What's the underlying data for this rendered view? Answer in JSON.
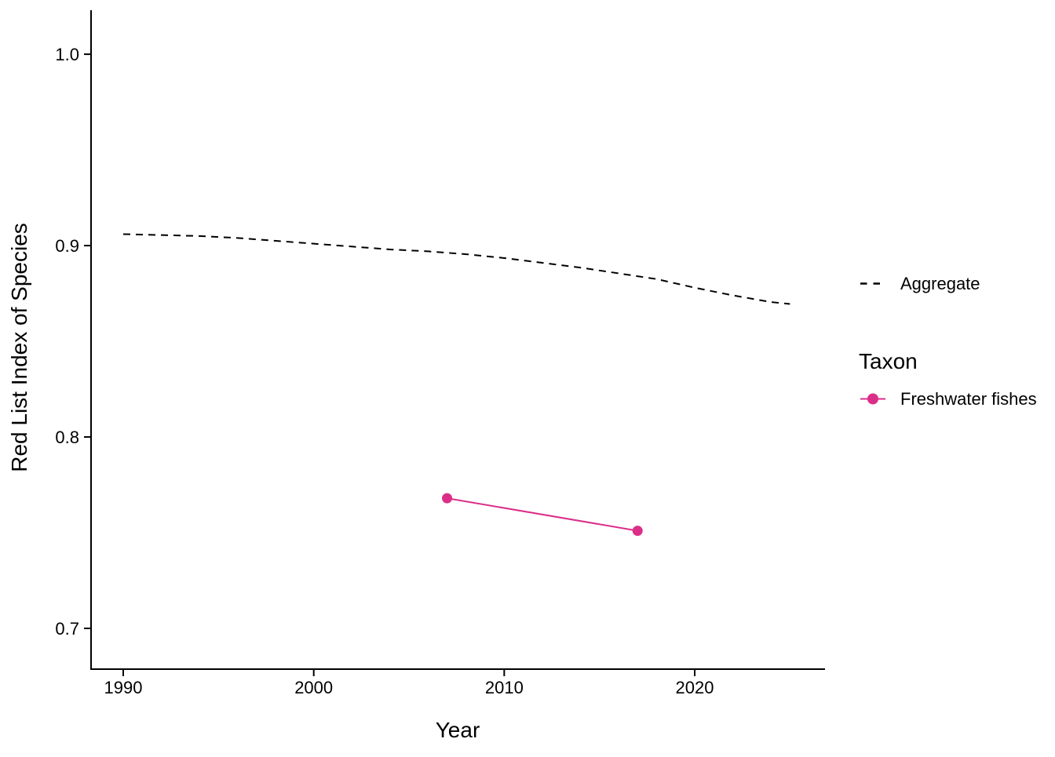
{
  "chart_data": {
    "type": "line",
    "title": "",
    "xlabel": "Year",
    "ylabel": "Red List Index of Species",
    "xlim": [
      1988.31,
      2026.84
    ],
    "ylim": [
      0.6787,
      1.023
    ],
    "x_ticks": [
      1990,
      2000,
      2010,
      2020
    ],
    "x_tick_labels": [
      "1990",
      "2000",
      "2010",
      "2020"
    ],
    "y_ticks": [
      0.7,
      0.8,
      0.9,
      1.0
    ],
    "y_tick_labels": [
      "0.7",
      "0.8",
      "0.9",
      "1.0"
    ],
    "grid": false,
    "background_color": "#FFFFFF",
    "axis_color": "#000000",
    "series": [
      {
        "name": "Aggregate",
        "color": "#000000",
        "dash": "dashed",
        "show_points": false,
        "x": [
          1990,
          1992,
          1994,
          1996,
          1998,
          2000,
          2002,
          2004,
          2006,
          2008,
          2010,
          2012,
          2014,
          2016,
          2018,
          2020,
          2022,
          2024,
          2025
        ],
        "y": [
          0.906,
          0.9055,
          0.905,
          0.904,
          0.9025,
          0.901,
          0.8995,
          0.898,
          0.897,
          0.8955,
          0.8935,
          0.891,
          0.8885,
          0.8855,
          0.8825,
          0.878,
          0.874,
          0.8705,
          0.8695
        ]
      },
      {
        "name": "Freshwater fishes",
        "color": "#DB2E89",
        "dash": "solid",
        "show_points": true,
        "x": [
          2007,
          2017
        ],
        "y": [
          0.768,
          0.751
        ]
      }
    ],
    "legend": {
      "position": "right",
      "aggregate": {
        "label": "Aggregate"
      },
      "taxon": {
        "title": "Taxon",
        "label": "Freshwater fishes"
      }
    }
  }
}
